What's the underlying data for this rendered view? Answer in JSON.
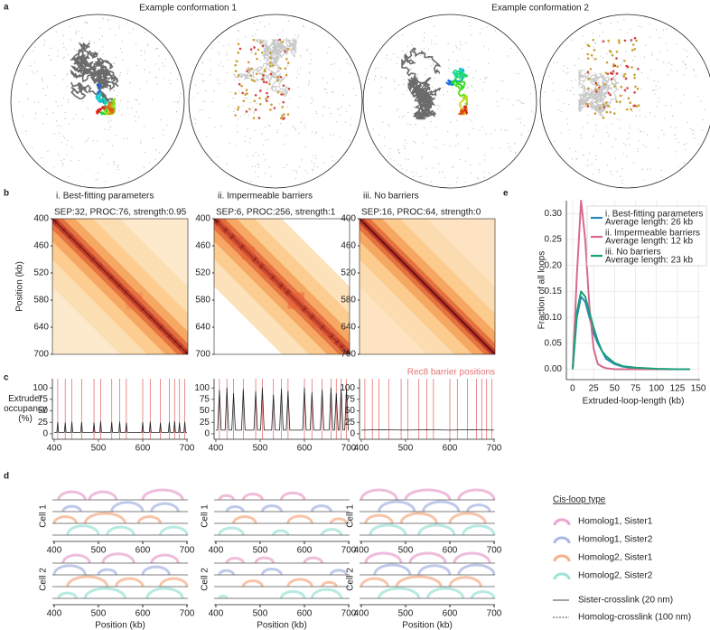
{
  "panel_labels": [
    "a",
    "b",
    "c",
    "d",
    "e"
  ],
  "conformations": {
    "titles": [
      "Example conformation 1",
      "Example conformation 2"
    ]
  },
  "legend_d": {
    "title": "Cis-loop type",
    "series": [
      {
        "name": "Homolog1, Sister1",
        "color": "#eaa6cf"
      },
      {
        "name": "Homolog1, Sister2",
        "color": "#a9b7e3"
      },
      {
        "name": "Homolog2, Sister1",
        "color": "#f5b08c"
      },
      {
        "name": "Homolog2, Sister2",
        "color": "#9fe3d7"
      }
    ],
    "crosslinks": [
      {
        "name": "Sister-crosslink (20 nm)",
        "style": "solid"
      },
      {
        "name": "Homolog-crosslink (100 nm)",
        "style": "dashed"
      }
    ]
  },
  "chart_data": [
    {
      "type": "heatmap",
      "title": "i. Best-fitting parameters",
      "subtitle": "SEP:32, PROC:76, strength:0.95",
      "ylabel": "Position (kb)",
      "ylim": [
        400,
        700
      ],
      "yticks": [
        400,
        460,
        520,
        580,
        640,
        700
      ]
    },
    {
      "type": "heatmap",
      "title": "ii. Impermeable barriers",
      "subtitle": "SEP:6, PROC:256, strength:1",
      "ylim": [
        400,
        700
      ],
      "yticks": [
        400,
        460,
        520,
        580,
        640,
        700
      ]
    },
    {
      "type": "heatmap",
      "title": "iii. No barriers",
      "subtitle": "SEP:16, PROC:64, strength:0",
      "ylim": [
        400,
        700
      ],
      "yticks": [
        400,
        460,
        520,
        580,
        640,
        700
      ]
    },
    {
      "type": "line",
      "ylabel": "Extruder occupancy (%)",
      "xlim": [
        396,
        702
      ],
      "xticks": [
        400,
        500,
        600,
        700
      ],
      "ylim": [
        -12,
        120
      ],
      "yticks": [
        0,
        25,
        50,
        75,
        100
      ],
      "color": "#222222",
      "barrier_color": "#e57373",
      "barriers": [
        408,
        425,
        440,
        462,
        490,
        505,
        530,
        548,
        563,
        600,
        617,
        640,
        660,
        672,
        683,
        695
      ],
      "x": [
        400,
        406,
        408,
        410,
        423,
        425,
        427,
        438,
        440,
        442,
        460,
        462,
        464,
        488,
        490,
        492,
        503,
        505,
        507,
        528,
        530,
        532,
        546,
        548,
        550,
        561,
        563,
        565,
        598,
        600,
        602,
        615,
        617,
        619,
        638,
        640,
        642,
        658,
        660,
        662,
        670,
        672,
        674,
        681,
        683,
        685,
        693,
        695,
        697,
        700
      ],
      "values": [
        3,
        3,
        25,
        3,
        3,
        24,
        3,
        3,
        26,
        3,
        3,
        25,
        3,
        3,
        24,
        3,
        3,
        27,
        3,
        3,
        25,
        3,
        3,
        26,
        3,
        3,
        24,
        3,
        3,
        25,
        3,
        3,
        26,
        3,
        3,
        24,
        3,
        3,
        25,
        3,
        3,
        27,
        3,
        3,
        24,
        3,
        3,
        26,
        3,
        3
      ]
    },
    {
      "type": "line",
      "xlim": [
        396,
        702
      ],
      "xticks": [
        400,
        500,
        600,
        700
      ],
      "ylim": [
        -12,
        120
      ],
      "yticks": [
        0,
        25,
        50,
        75,
        100
      ],
      "color": "#222222",
      "barrier_color": "#e57373",
      "barriers": [
        408,
        425,
        440,
        462,
        490,
        505,
        530,
        548,
        563,
        600,
        617,
        640,
        660,
        672,
        683,
        695
      ],
      "x": [
        400,
        404,
        408,
        412,
        421,
        425,
        429,
        436,
        440,
        444,
        458,
        462,
        466,
        486,
        490,
        494,
        501,
        505,
        509,
        526,
        530,
        534,
        544,
        548,
        552,
        559,
        563,
        567,
        596,
        600,
        604,
        613,
        617,
        621,
        636,
        640,
        644,
        656,
        660,
        664,
        668,
        672,
        676,
        679,
        683,
        687,
        691,
        695,
        699,
        700
      ],
      "values": [
        8,
        8,
        95,
        8,
        8,
        100,
        8,
        8,
        88,
        8,
        8,
        97,
        8,
        8,
        92,
        8,
        8,
        100,
        8,
        8,
        85,
        8,
        8,
        98,
        8,
        8,
        93,
        8,
        8,
        100,
        8,
        8,
        90,
        8,
        8,
        96,
        8,
        8,
        100,
        8,
        8,
        88,
        8,
        8,
        97,
        8,
        8,
        99,
        8,
        8
      ]
    },
    {
      "type": "line",
      "annotation": "Rec8 barrier positions",
      "xlim": [
        396,
        702
      ],
      "xticks": [
        400,
        500,
        600,
        700
      ],
      "ylim": [
        -12,
        120
      ],
      "yticks": [
        0,
        25,
        50,
        75,
        100
      ],
      "color": "#222222",
      "barrier_color": "#e57373",
      "barriers": [
        408,
        425,
        440,
        462,
        490,
        505,
        530,
        548,
        563,
        600,
        617,
        640,
        660,
        672,
        683,
        695
      ],
      "x": [
        400,
        450,
        500,
        550,
        600,
        650,
        700
      ],
      "values": [
        8,
        9,
        8,
        9,
        8,
        9,
        8
      ]
    },
    {
      "type": "arc",
      "ylabel": "Cell 1",
      "xlim": [
        396,
        702
      ],
      "xticks": [
        400,
        500,
        600,
        700
      ],
      "loops": [
        [
          [
            410,
            470
          ],
          [
            480,
            540
          ],
          [
            600,
            690
          ]
        ],
        [
          [
            420,
            460
          ],
          [
            530,
            600
          ],
          [
            620,
            680
          ]
        ],
        [
          [
            400,
            450
          ],
          [
            470,
            560
          ],
          [
            590,
            640
          ]
        ],
        [
          [
            430,
            500
          ],
          [
            520,
            580
          ],
          [
            640,
            700
          ]
        ]
      ]
    },
    {
      "type": "arc",
      "ylabel": "Cell 1",
      "xlim": [
        396,
        702
      ],
      "xticks": [
        400,
        500,
        600,
        700
      ],
      "loops": [
        [
          [
            408,
            440
          ],
          [
            462,
            505
          ],
          [
            548,
            600
          ]
        ],
        [
          [
            425,
            462
          ],
          [
            505,
            548
          ],
          [
            617,
            660
          ]
        ],
        [
          [
            440,
            490
          ],
          [
            563,
            617
          ],
          [
            660,
            695
          ]
        ],
        [
          [
            408,
            462
          ],
          [
            530,
            563
          ],
          [
            640,
            683
          ]
        ]
      ]
    },
    {
      "type": "arc",
      "ylabel": "Cell 1",
      "xlim": [
        396,
        702
      ],
      "xticks": [
        400,
        500,
        600,
        700
      ],
      "loops": [
        [
          [
            400,
            480
          ],
          [
            500,
            600
          ],
          [
            620,
            700
          ]
        ],
        [
          [
            440,
            520
          ],
          [
            540,
            620
          ],
          [
            640,
            690
          ]
        ],
        [
          [
            410,
            470
          ],
          [
            490,
            570
          ],
          [
            600,
            680
          ]
        ],
        [
          [
            420,
            500
          ],
          [
            530,
            610
          ],
          [
            630,
            700
          ]
        ]
      ]
    },
    {
      "type": "arc",
      "ylabel": "Cell 2",
      "xlabel": "Position (kb)",
      "xlim": [
        396,
        702
      ],
      "xticks": [
        400,
        500,
        600,
        700
      ],
      "loops": [
        [
          [
            420,
            480
          ],
          [
            510,
            580
          ],
          [
            620,
            680
          ]
        ],
        [
          [
            400,
            470
          ],
          [
            500,
            540
          ],
          [
            600,
            660
          ]
        ],
        [
          [
            430,
            520
          ],
          [
            540,
            600
          ],
          [
            640,
            700
          ]
        ],
        [
          [
            410,
            450
          ],
          [
            470,
            560
          ],
          [
            610,
            690
          ]
        ]
      ]
    },
    {
      "type": "arc",
      "ylabel": "Cell 2",
      "xlabel": "Position (kb)",
      "xlim": [
        396,
        702
      ],
      "xticks": [
        400,
        500,
        600,
        700
      ],
      "loops": [
        [
          [
            425,
            462
          ],
          [
            490,
            530
          ],
          [
            600,
            640
          ]
        ],
        [
          [
            408,
            440
          ],
          [
            505,
            548
          ],
          [
            660,
            695
          ]
        ],
        [
          [
            462,
            505
          ],
          [
            563,
            617
          ],
          [
            640,
            672
          ]
        ],
        [
          [
            408,
            425
          ],
          [
            548,
            600
          ],
          [
            617,
            683
          ]
        ]
      ]
    },
    {
      "type": "arc",
      "ylabel": "Cell 2",
      "xlabel": "Position (kb)",
      "xlim": [
        396,
        702
      ],
      "xticks": [
        400,
        500,
        600,
        700
      ],
      "loops": [
        [
          [
            410,
            490
          ],
          [
            510,
            590
          ],
          [
            610,
            690
          ]
        ],
        [
          [
            430,
            510
          ],
          [
            530,
            600
          ],
          [
            620,
            700
          ]
        ],
        [
          [
            400,
            460
          ],
          [
            480,
            580
          ],
          [
            600,
            670
          ]
        ],
        [
          [
            440,
            530
          ],
          [
            550,
            630
          ],
          [
            650,
            700
          ]
        ]
      ]
    },
    {
      "type": "line",
      "xlabel": "Extruded-loop-length (kb)",
      "ylabel": "Fraction of all loops",
      "grid": true,
      "legend": "upper right",
      "xlim": [
        -7.5,
        152
      ],
      "xticks": [
        0,
        25,
        50,
        75,
        100,
        125,
        150
      ],
      "ylim": [
        -0.02,
        0.325
      ],
      "yticks": [
        {
          "value": 0,
          "label": "0.00"
        },
        {
          "value": 0.05,
          "label": "0.05"
        },
        {
          "value": 0.1,
          "label": "0.10"
        },
        {
          "value": 0.15,
          "label": "0.15"
        },
        {
          "value": 0.2,
          "label": "0.20"
        },
        {
          "value": 0.25,
          "label": "0.25"
        },
        {
          "value": 0.3,
          "label": "0.30"
        }
      ],
      "x": [
        0,
        5,
        10,
        15,
        20,
        25,
        30,
        35,
        40,
        50,
        60,
        75,
        100,
        125,
        140
      ],
      "series": [
        {
          "name": "i. Best-fitting parameters",
          "note": "Average length: 26 kb",
          "color": "#2a86b8",
          "values": [
            0,
            0.1,
            0.14,
            0.13,
            0.1,
            0.07,
            0.05,
            0.035,
            0.02,
            0.01,
            0.005,
            0.002,
            0,
            0,
            0
          ]
        },
        {
          "name": "ii. Impermeable barriers",
          "note": "Average length: 12 kb",
          "color": "#d86a8c",
          "values": [
            0,
            0.18,
            0.325,
            0.25,
            0.12,
            0.04,
            0.01,
            0.005,
            0.002,
            0,
            0,
            0,
            0,
            0,
            0
          ]
        },
        {
          "name": "iii. No barriers",
          "note": "Average length: 23 kb",
          "color": "#1aa07a",
          "values": [
            0,
            0.11,
            0.15,
            0.14,
            0.11,
            0.08,
            0.055,
            0.035,
            0.025,
            0.012,
            0.006,
            0.003,
            0.001,
            0,
            0
          ]
        }
      ]
    }
  ]
}
